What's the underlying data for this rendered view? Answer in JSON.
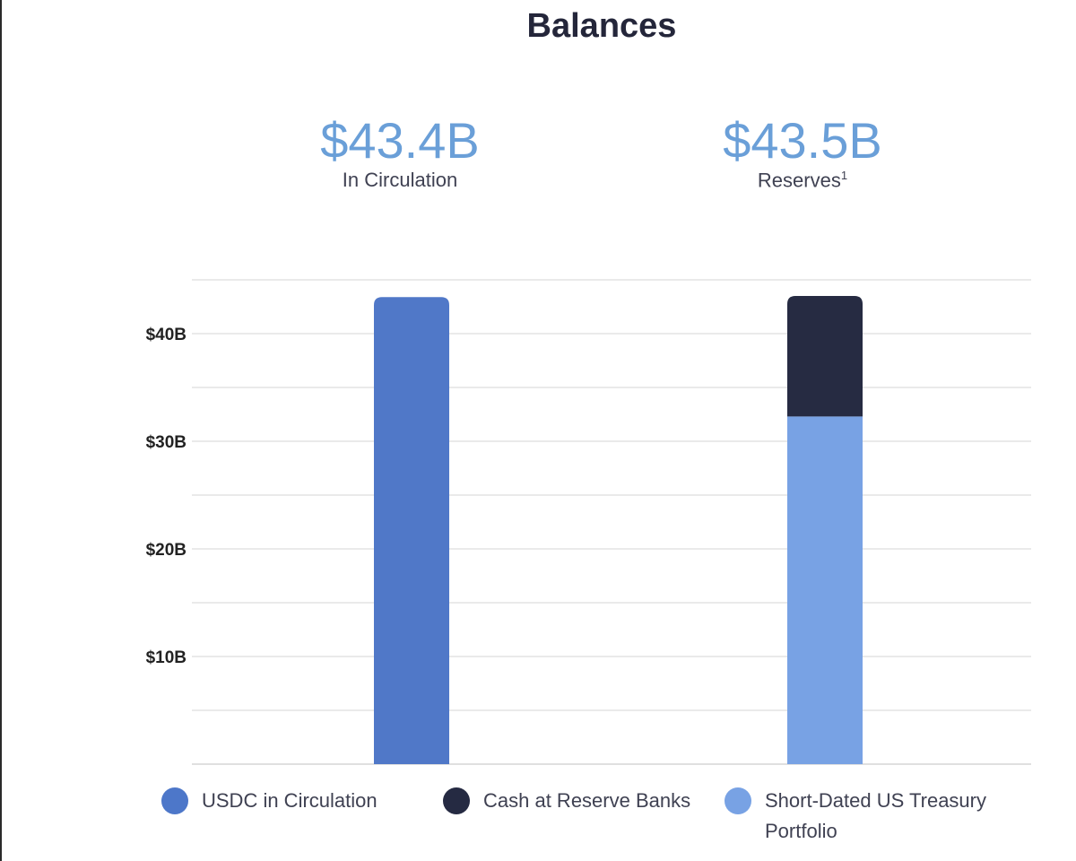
{
  "title": "Balances",
  "stats": [
    {
      "value": "$43.4B",
      "label": "In Circulation",
      "footnote": ""
    },
    {
      "value": "$43.5B",
      "label": "Reserves",
      "footnote": "1"
    }
  ],
  "chart_data": {
    "type": "bar",
    "stacked": true,
    "categories": [
      "In Circulation",
      "Reserves"
    ],
    "series": [
      {
        "name": "USDC in Circulation",
        "color": "#5078c8",
        "values": [
          43.4,
          0
        ]
      },
      {
        "name": "Short-Dated US Treasury Portfolio",
        "color": "#78a2e4",
        "values": [
          0,
          32.3
        ]
      },
      {
        "name": "Cash at Reserve Banks",
        "color": "#262b42",
        "values": [
          0,
          11.2
        ]
      }
    ],
    "y_ticks": [
      {
        "value": 10,
        "label": "$10B"
      },
      {
        "value": 20,
        "label": "$20B"
      },
      {
        "value": 30,
        "label": "$30B"
      },
      {
        "value": 40,
        "label": "$40B"
      }
    ],
    "ylim": [
      0,
      45
    ],
    "grid": true,
    "legend_position": "bottom"
  },
  "legend": [
    {
      "label": "USDC in Circulation",
      "color": "#4d77c9"
    },
    {
      "label": "Cash at Reserve Banks",
      "color": "#252a42"
    },
    {
      "label": "Short-Dated US Treasury Portfolio",
      "color": "#78a2e4"
    }
  ]
}
